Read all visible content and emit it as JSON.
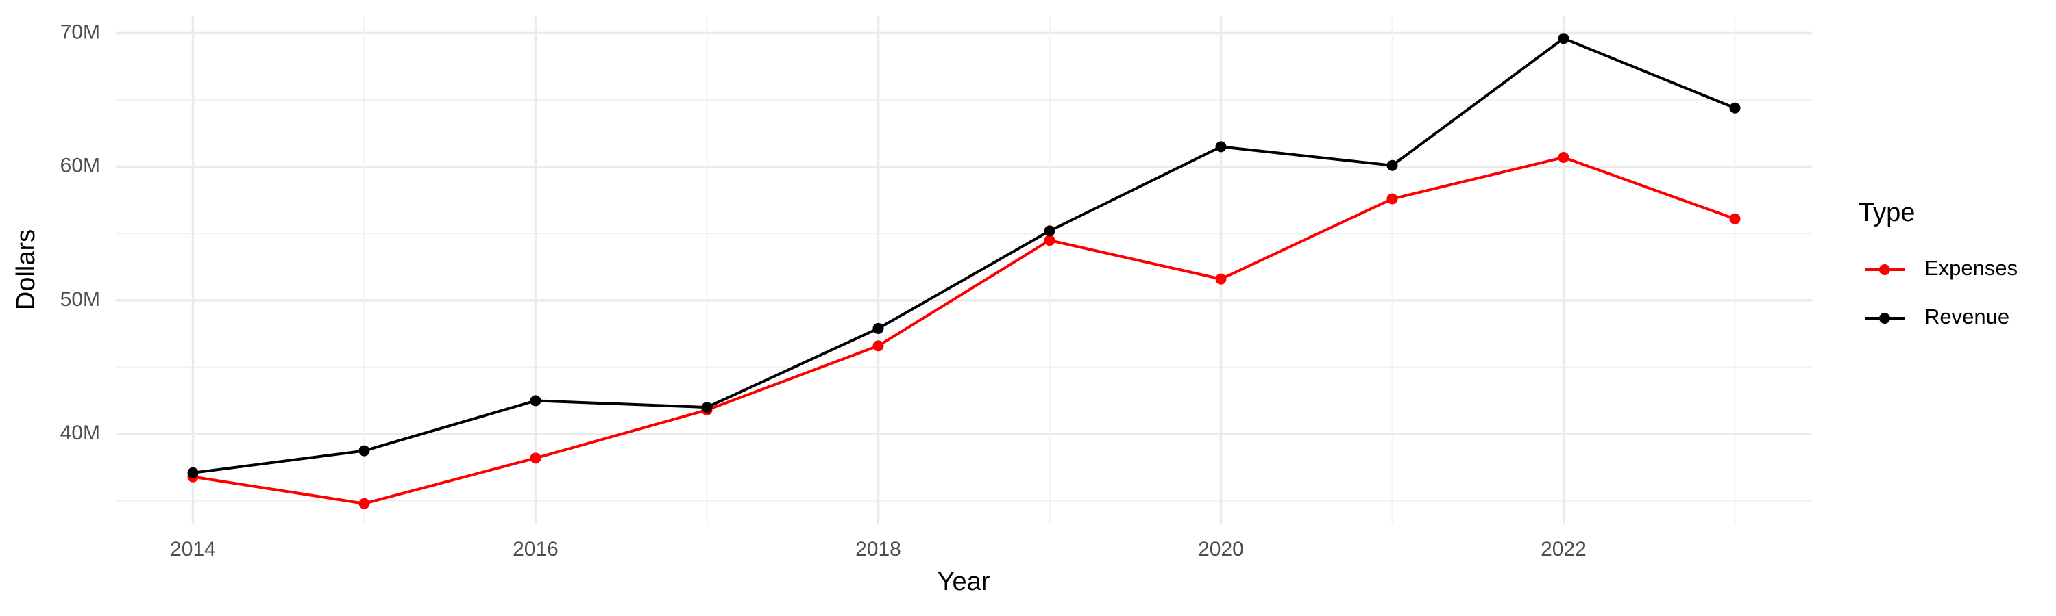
{
  "chart_data": {
    "type": "line",
    "x_label": "Year",
    "y_label": "Dollars",
    "x": [
      2014,
      2015,
      2016,
      2017,
      2018,
      2019,
      2020,
      2021,
      2022,
      2023
    ],
    "series": [
      {
        "name": "Expenses",
        "color": "#ff0000",
        "values": [
          36800000,
          34800000,
          38200000,
          41800000,
          46600000,
          54500000,
          51600000,
          57600000,
          60700000,
          56100000
        ]
      },
      {
        "name": "Revenue",
        "color": "#000000",
        "values": [
          37100000,
          38750000,
          42500000,
          42000000,
          47900000,
          55200000,
          61500000,
          60100000,
          69600000,
          64400000
        ]
      }
    ],
    "xlim": [
      2013.55,
      2023.45
    ],
    "xticks": [
      2014,
      2016,
      2018,
      2020,
      2022
    ],
    "ylim": [
      33300000,
      71300000
    ],
    "yticks": [
      {
        "value": 40000000,
        "label": "40M"
      },
      {
        "value": 50000000,
        "label": "50M"
      },
      {
        "value": 60000000,
        "label": "60M"
      },
      {
        "value": 70000000,
        "label": "70M"
      }
    ],
    "grid": true,
    "legend_title": "Type",
    "legend_position": "right"
  }
}
